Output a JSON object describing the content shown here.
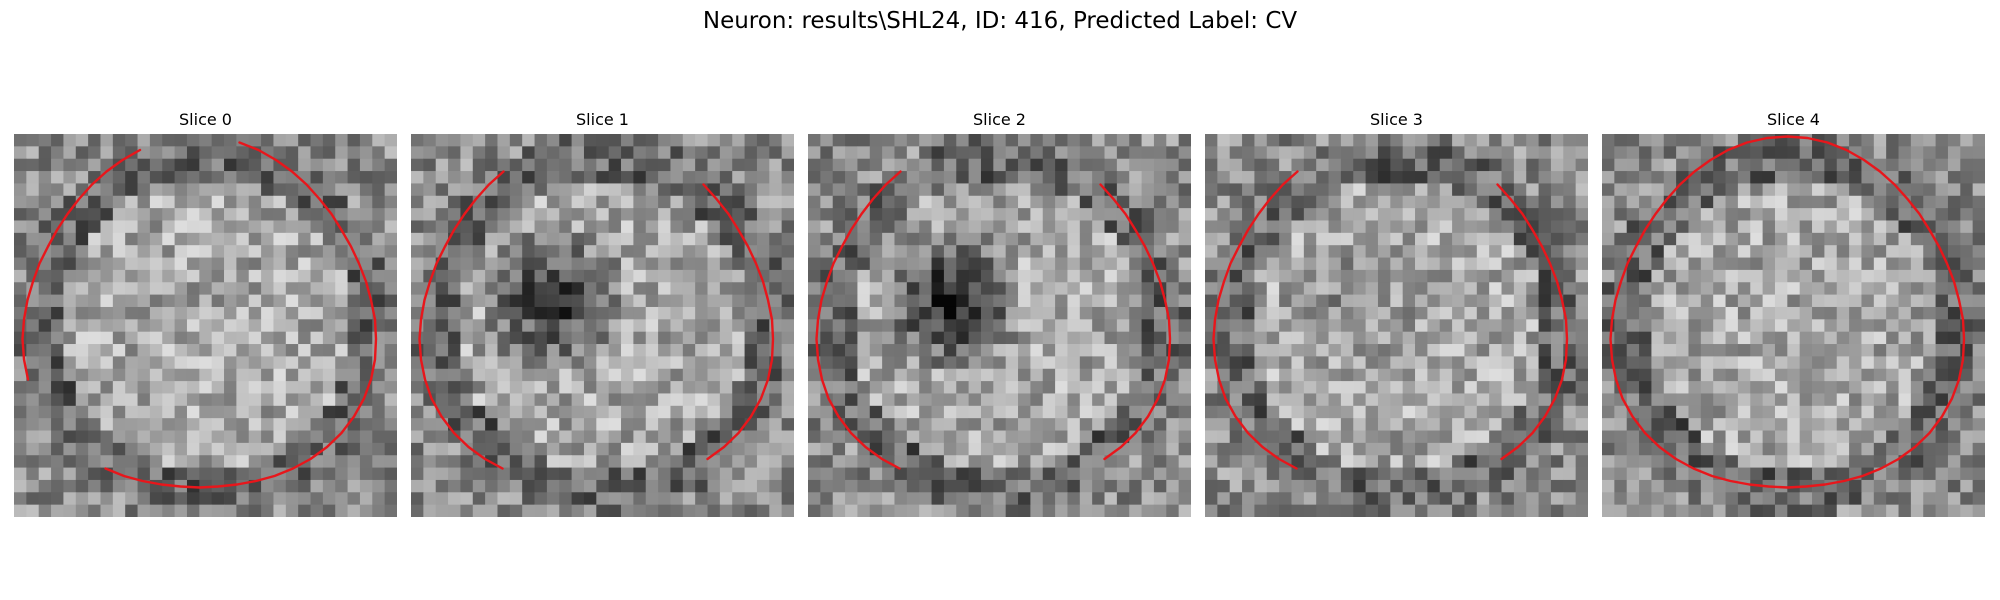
{
  "figure": {
    "title": "Neuron: results\\SHL24, ID: 416, Predicted Label: CV"
  },
  "colors": {
    "contour": "#e8161b",
    "background": "#ffffff",
    "colormap": "gray"
  },
  "panels": [
    {
      "title": "Slice 0",
      "seed": 11,
      "dark_center": 0.0,
      "contour": "open-left-right"
    },
    {
      "title": "Slice 1",
      "seed": 23,
      "dark_center": 0.9,
      "contour": "open-top-bottom"
    },
    {
      "title": "Slice 2",
      "seed": 37,
      "dark_center": 1.0,
      "contour": "open-top-bottom"
    },
    {
      "title": "Slice 3",
      "seed": 41,
      "dark_center": 0.2,
      "contour": "open-top-bottom"
    },
    {
      "title": "Slice 4",
      "seed": 53,
      "dark_center": 0.0,
      "contour": "closed"
    }
  ]
}
